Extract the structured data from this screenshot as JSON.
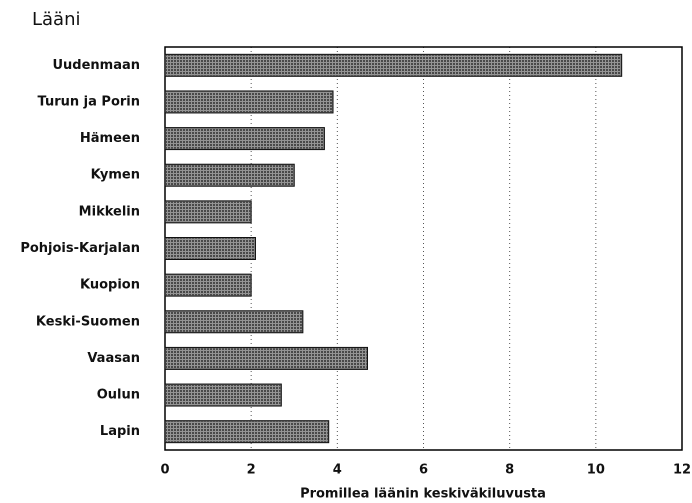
{
  "chart_data": {
    "type": "bar",
    "orientation": "horizontal",
    "title": "Lääni",
    "x_label": "Promillea läänin keskiväkiluvusta",
    "categories": [
      "Uudenmaan",
      "Turun ja Porin",
      "Hämeen",
      "Kymen",
      "Mikkelin",
      "Pohjois-Karjalan",
      "Kuopion",
      "Keski-Suomen",
      "Vaasan",
      "Oulun",
      "Lapin"
    ],
    "values": [
      10.6,
      3.9,
      3.7,
      3.0,
      2.0,
      2.1,
      2.0,
      3.2,
      4.7,
      2.7,
      3.8
    ],
    "color": "#6a6a6a",
    "xlim": [
      0,
      12
    ],
    "xticks": [
      0,
      2,
      4,
      6,
      8,
      10,
      12
    ],
    "grid": true
  }
}
